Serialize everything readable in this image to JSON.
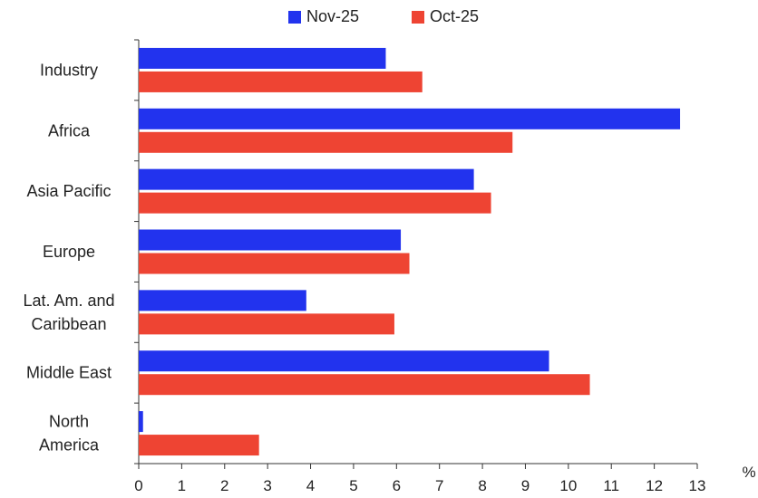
{
  "chart_data": {
    "type": "bar",
    "orientation": "horizontal",
    "categories": [
      [
        "Industry"
      ],
      [
        "Africa"
      ],
      [
        "Asia Pacific"
      ],
      [
        "Europe"
      ],
      [
        "Lat. Am. and",
        "Caribbean"
      ],
      [
        "Middle East"
      ],
      [
        "North",
        "America"
      ]
    ],
    "series": [
      {
        "name": "Nov-25",
        "color": "#2233ee",
        "values": [
          5.75,
          12.6,
          7.8,
          6.1,
          3.9,
          9.55,
          0.1
        ]
      },
      {
        "name": "Oct-25",
        "color": "#ee4433",
        "values": [
          6.6,
          8.7,
          8.2,
          6.3,
          5.95,
          10.5,
          2.8
        ]
      }
    ],
    "xlim": [
      0,
      13
    ],
    "xticks": [
      "0",
      "1",
      "2",
      "3",
      "4",
      "5",
      "6",
      "7",
      "8",
      "9",
      "10",
      "11",
      "12",
      "13"
    ],
    "xunit": "%",
    "legend_position": "top",
    "grid": false
  }
}
